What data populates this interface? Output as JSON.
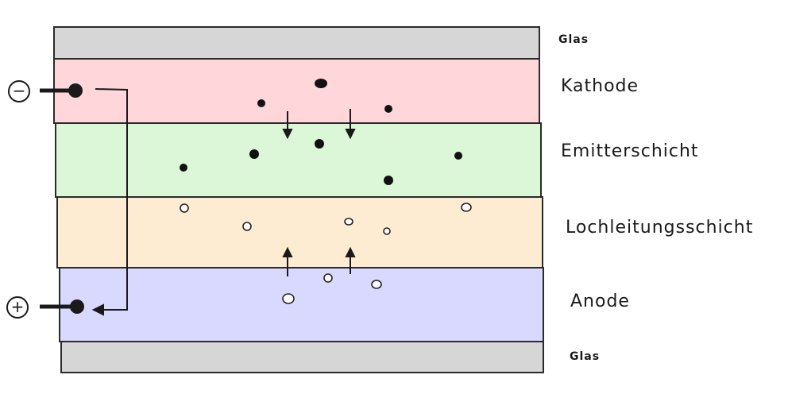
{
  "colors": {
    "glass": "#d6d6d6",
    "cathode": "#ffd6d9",
    "emitter": "#dcf7d8",
    "hole_transport": "#feecd2",
    "anode": "#d9d9ff",
    "outline": "#2a2a2a",
    "electron": "#111111",
    "hole": "#ffffff"
  },
  "labels": {
    "glass_top": "Glas",
    "cathode": "Kathode",
    "emitter": "Emitterschicht",
    "hole_transport": "Lochleitungsschicht",
    "anode": "Anode",
    "glass_bottom": "Glas"
  },
  "terminals": {
    "minus": "−",
    "plus": "+"
  },
  "icons": {
    "electron": "filled-dot",
    "hole": "hollow-circle",
    "arrow": "arrow"
  }
}
